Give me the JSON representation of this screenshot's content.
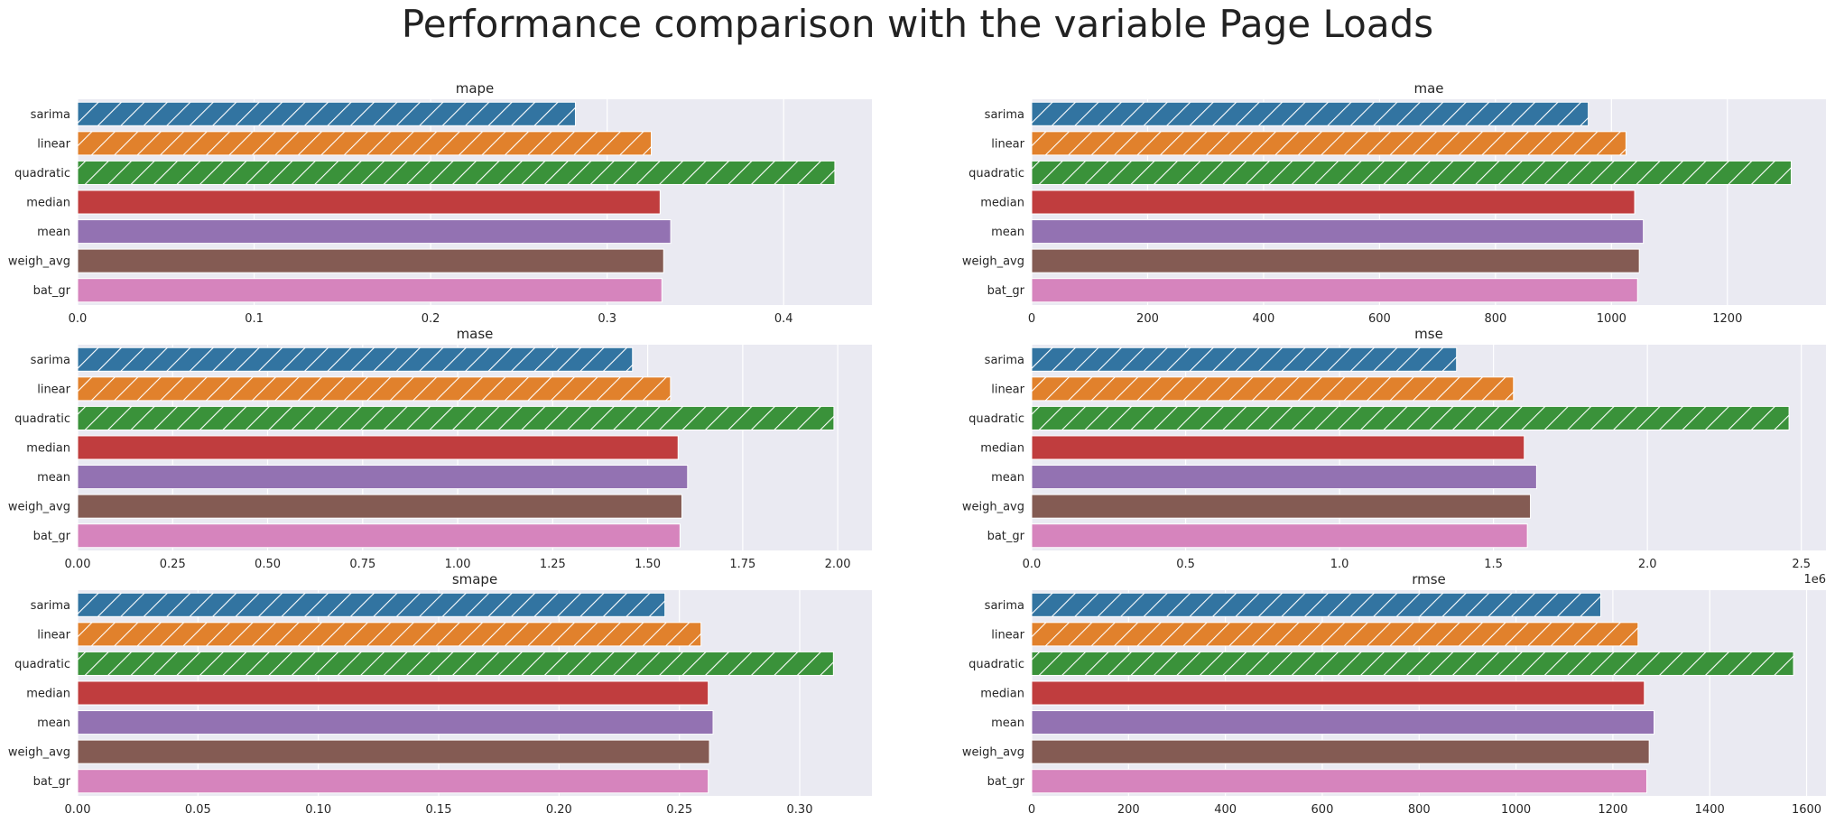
{
  "title": "Performance comparison with the variable Page Loads",
  "colors": [
    "#3274a1",
    "#e1812c",
    "#3a923a",
    "#c03d3e",
    "#9372b2",
    "#845b53",
    "#d684bd"
  ],
  "hatched": [
    true,
    true,
    true,
    false,
    false,
    false,
    false
  ],
  "chart_data": [
    {
      "type": "bar",
      "orientation": "horizontal",
      "title": "mape",
      "categories": [
        "sarima",
        "linear",
        "quadratic",
        "median",
        "mean",
        "weigh_avg",
        "bat_gr"
      ],
      "values": [
        0.282,
        0.325,
        0.429,
        0.33,
        0.336,
        0.332,
        0.331
      ],
      "xlim": [
        0,
        0.45
      ],
      "ticks": [
        0.0,
        0.1,
        0.2,
        0.3,
        0.4
      ],
      "tick_labels": [
        "0.0",
        "0.1",
        "0.2",
        "0.3",
        "0.4"
      ],
      "offset_text": "",
      "grid": true
    },
    {
      "type": "bar",
      "orientation": "horizontal",
      "title": "mae",
      "categories": [
        "sarima",
        "linear",
        "quadratic",
        "median",
        "mean",
        "weigh_avg",
        "bat_gr"
      ],
      "values": [
        960,
        1025,
        1310,
        1040,
        1055,
        1048,
        1045
      ],
      "xlim": [
        0,
        1370
      ],
      "ticks": [
        0,
        200,
        400,
        600,
        800,
        1000,
        1200
      ],
      "tick_labels": [
        "0",
        "200",
        "400",
        "600",
        "800",
        "1000",
        "1200"
      ],
      "offset_text": "",
      "grid": true
    },
    {
      "type": "bar",
      "orientation": "horizontal",
      "title": "mase",
      "categories": [
        "sarima",
        "linear",
        "quadratic",
        "median",
        "mean",
        "weigh_avg",
        "bat_gr"
      ],
      "values": [
        1.46,
        1.56,
        1.99,
        1.58,
        1.605,
        1.59,
        1.585
      ],
      "xlim": [
        0,
        2.09
      ],
      "ticks": [
        0.0,
        0.25,
        0.5,
        0.75,
        1.0,
        1.25,
        1.5,
        1.75,
        2.0
      ],
      "tick_labels": [
        "0.00",
        "0.25",
        "0.50",
        "0.75",
        "1.00",
        "1.25",
        "1.50",
        "1.75",
        "2.00"
      ],
      "offset_text": "",
      "grid": true
    },
    {
      "type": "bar",
      "orientation": "horizontal",
      "title": "mse",
      "categories": [
        "sarima",
        "linear",
        "quadratic",
        "median",
        "mean",
        "weigh_avg",
        "bat_gr"
      ],
      "values": [
        1.38,
        1.565,
        2.46,
        1.6,
        1.64,
        1.62,
        1.61
      ],
      "xlim": [
        0,
        2.58
      ],
      "ticks": [
        0.0,
        0.5,
        1.0,
        1.5,
        2.0,
        2.5
      ],
      "tick_labels": [
        "0.0",
        "0.5",
        "1.0",
        "1.5",
        "2.0",
        "2.5"
      ],
      "offset_text": "1e6",
      "grid": true
    },
    {
      "type": "bar",
      "orientation": "horizontal",
      "title": "smape",
      "categories": [
        "sarima",
        "linear",
        "quadratic",
        "median",
        "mean",
        "weigh_avg",
        "bat_gr"
      ],
      "values": [
        0.244,
        0.259,
        0.314,
        0.262,
        0.264,
        0.2625,
        0.262
      ],
      "xlim": [
        0,
        0.33
      ],
      "ticks": [
        0.0,
        0.05,
        0.1,
        0.15,
        0.2,
        0.25,
        0.3
      ],
      "tick_labels": [
        "0.00",
        "0.05",
        "0.10",
        "0.15",
        "0.20",
        "0.25",
        "0.30"
      ],
      "offset_text": "",
      "grid": true
    },
    {
      "type": "bar",
      "orientation": "horizontal",
      "title": "rmse",
      "categories": [
        "sarima",
        "linear",
        "quadratic",
        "median",
        "mean",
        "weigh_avg",
        "bat_gr"
      ],
      "values": [
        1175,
        1252,
        1573,
        1265,
        1285,
        1275,
        1270
      ],
      "xlim": [
        0,
        1640
      ],
      "ticks": [
        0,
        200,
        400,
        600,
        800,
        1000,
        1200,
        1400,
        1600
      ],
      "tick_labels": [
        "0",
        "200",
        "400",
        "600",
        "800",
        "1000",
        "1200",
        "1400",
        "1600"
      ],
      "offset_text": "",
      "grid": true
    }
  ]
}
